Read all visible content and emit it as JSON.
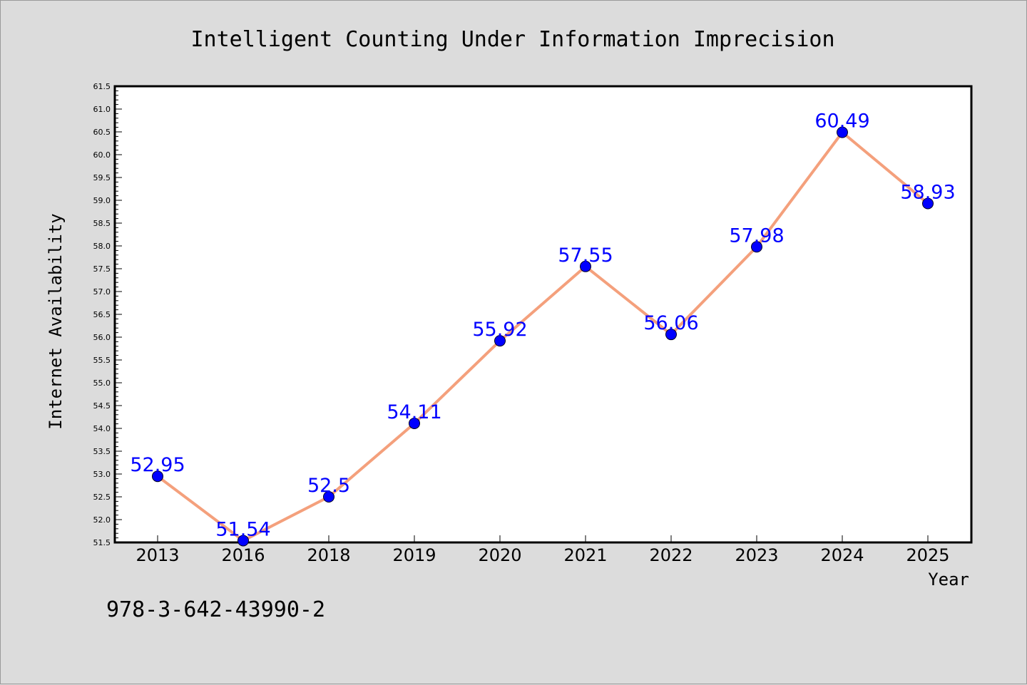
{
  "chart_data": {
    "type": "line",
    "title": "Intelligent Counting Under Information Imprecision",
    "xlabel": "Year",
    "ylabel": "Internet Availability",
    "categories": [
      "2013",
      "2016",
      "2018",
      "2019",
      "2020",
      "2021",
      "2022",
      "2023",
      "2024",
      "2025"
    ],
    "series": [
      {
        "values": [
          52.95,
          51.54,
          52.5,
          54.11,
          55.92,
          57.55,
          56.06,
          57.98,
          60.49,
          58.93
        ],
        "data_labels": [
          "52.95",
          "51.54",
          "52.5",
          "54.11",
          "55.92",
          "57.55",
          "56.06",
          "57.98",
          "60.49",
          "58.93"
        ]
      }
    ],
    "ylim": [
      51.5,
      61.5
    ],
    "yticks": [
      "51.5",
      "52.0",
      "52.5",
      "53.0",
      "53.5",
      "54.0",
      "54.5",
      "55.0",
      "55.5",
      "56.0",
      "56.5",
      "57.0",
      "57.5",
      "58.0",
      "58.5",
      "59.0",
      "59.5",
      "60.0",
      "60.5",
      "61.0",
      "61.5"
    ],
    "grid": false,
    "colors": {
      "line": "#f4a07c",
      "marker": "#0000ff",
      "label": "#0000ff",
      "background": "#dcdcdc",
      "plot_background": "#ffffff"
    }
  },
  "footer": {
    "isbn": "978-3-642-43990-2"
  }
}
